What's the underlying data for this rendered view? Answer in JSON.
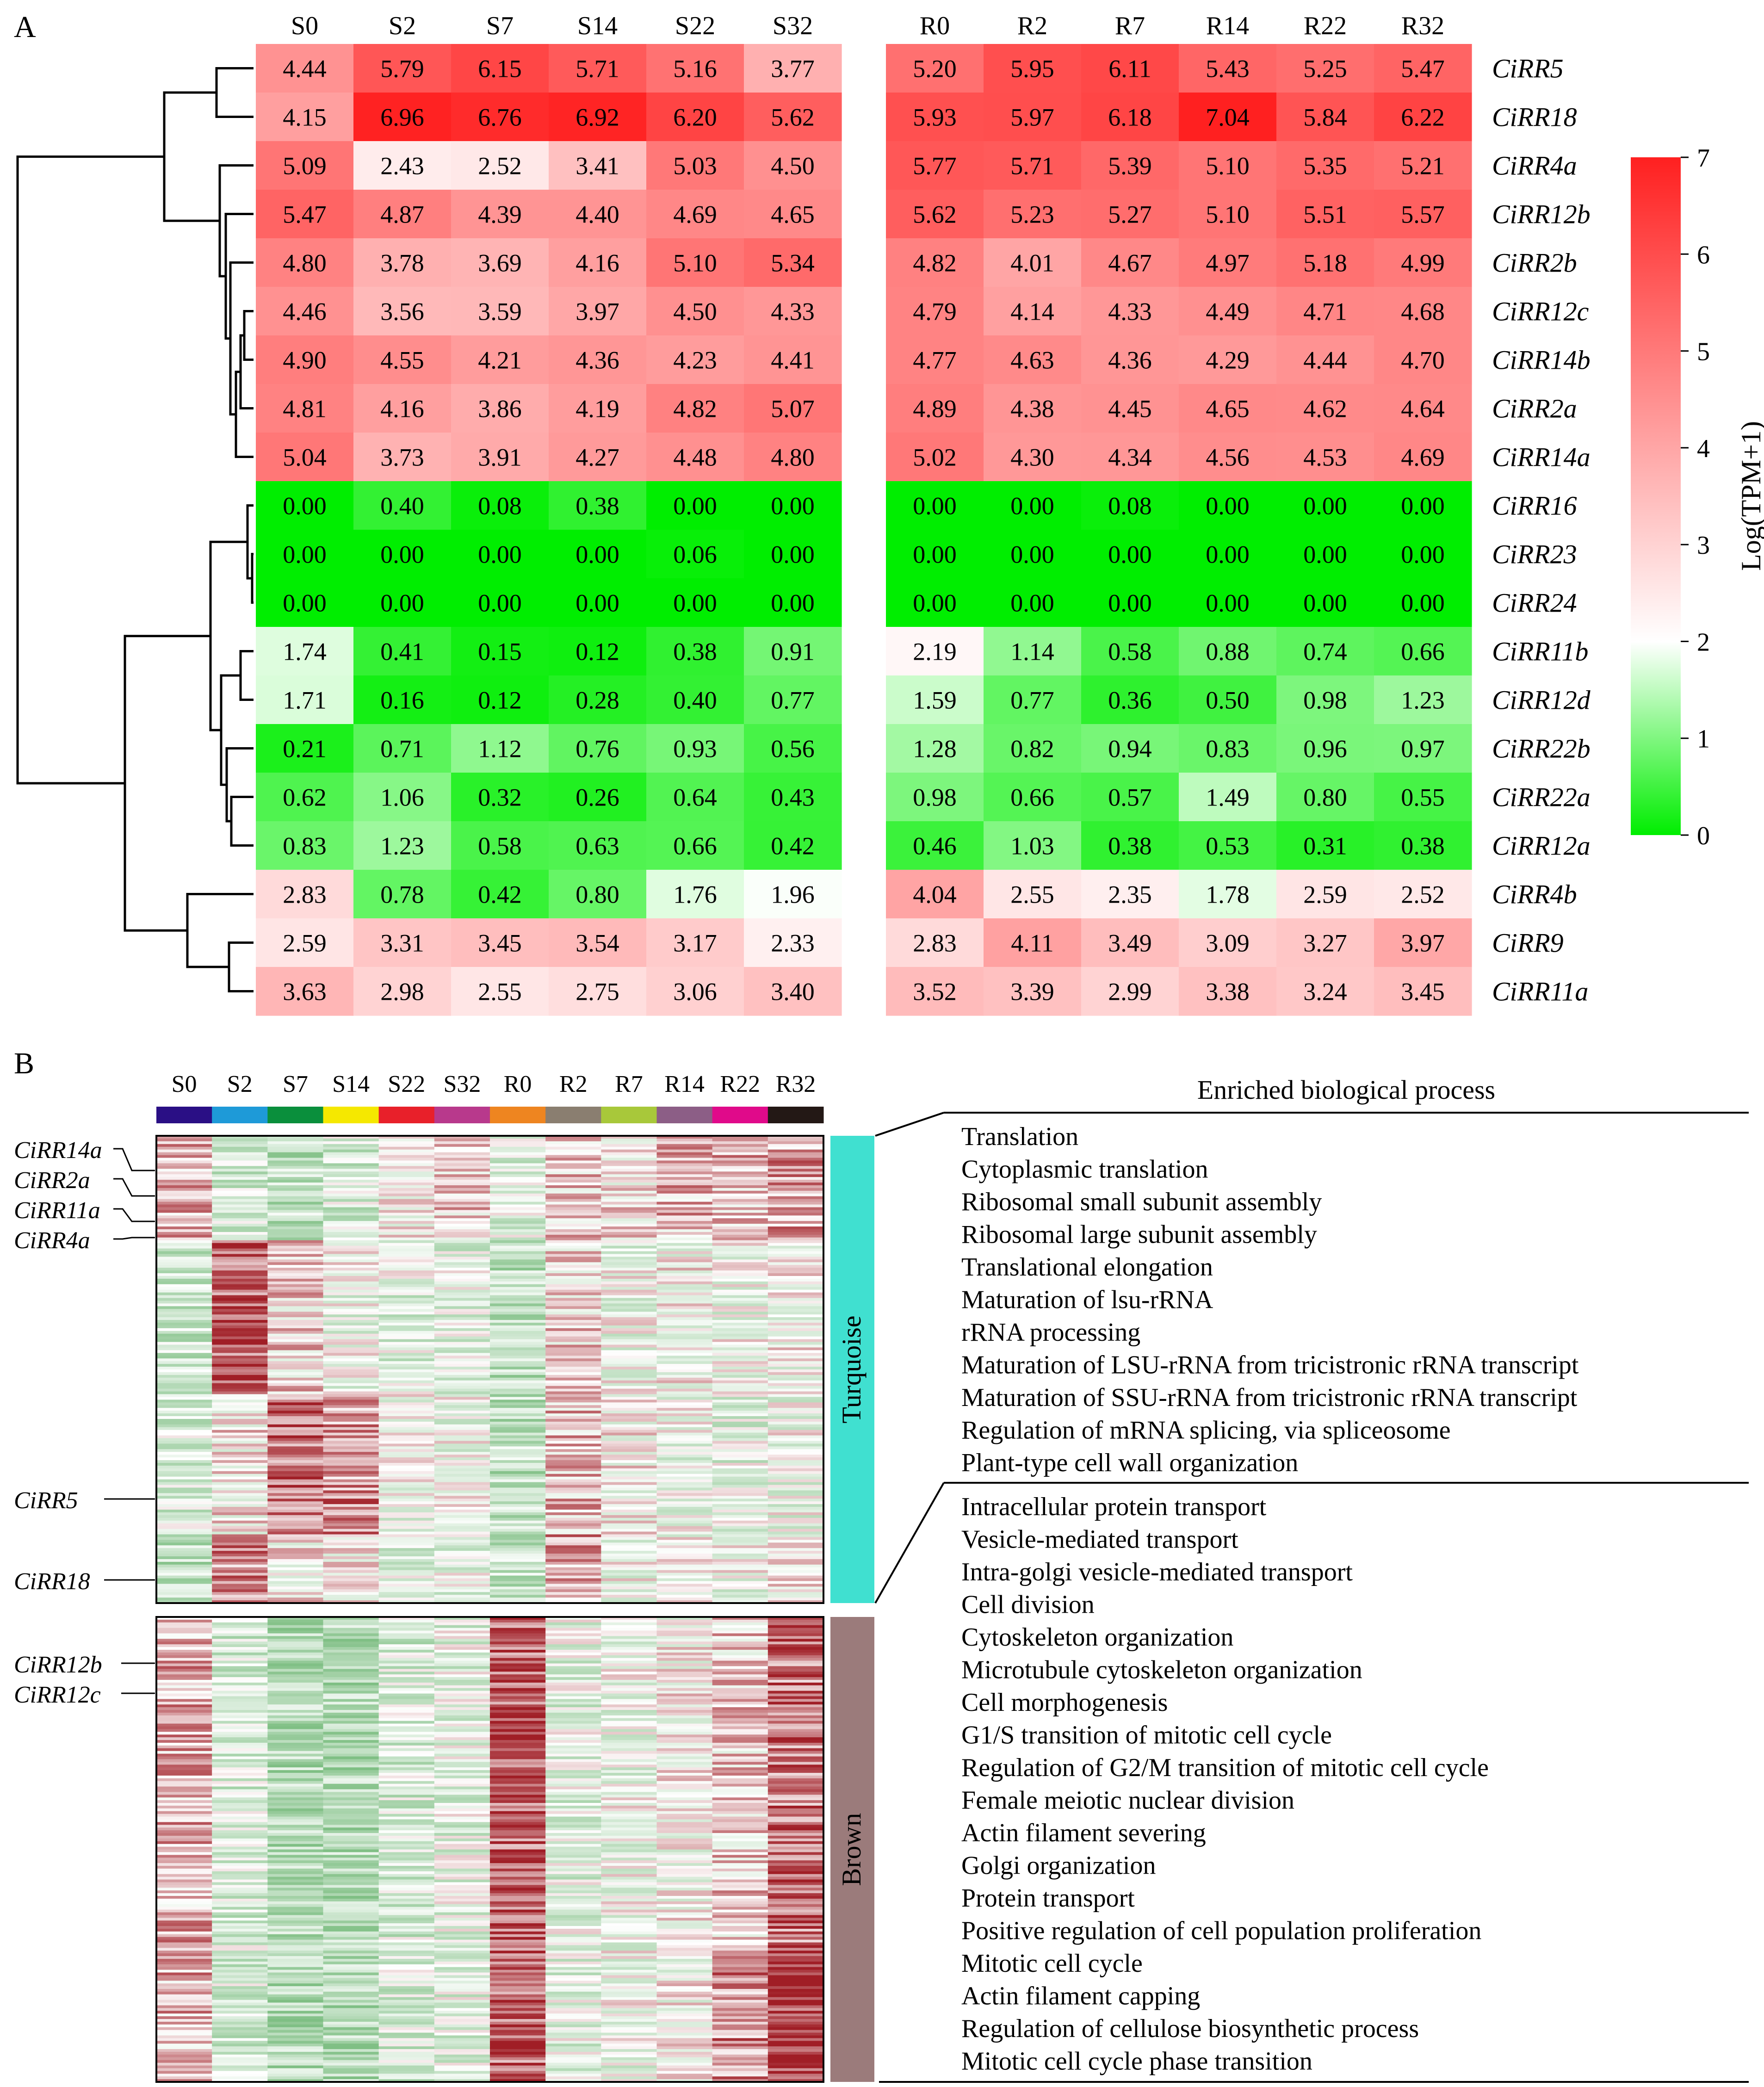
{
  "panels": {
    "a_label": "A",
    "b_label": "B"
  },
  "chart_data": [
    {
      "type": "heatmap",
      "title": "",
      "samples_s": [
        "S0",
        "S2",
        "S7",
        "S14",
        "S22",
        "S32"
      ],
      "samples_r": [
        "R0",
        "R2",
        "R7",
        "R14",
        "R22",
        "R32"
      ],
      "genes": [
        "CiRR5",
        "CiRR18",
        "CiRR4a",
        "CiRR12b",
        "CiRR2b",
        "CiRR12c",
        "CiRR14b",
        "CiRR2a",
        "CiRR14a",
        "CiRR16",
        "CiRR23",
        "CiRR24",
        "CiRR11b",
        "CiRR12d",
        "CiRR22b",
        "CiRR22a",
        "CiRR12a",
        "CiRR4b",
        "CiRR9",
        "CiRR11a"
      ],
      "values_s": [
        [
          "4.44",
          "5.79",
          "6.15",
          "5.71",
          "5.16",
          "3.77"
        ],
        [
          "4.15",
          "6.96",
          "6.76",
          "6.92",
          "6.20",
          "5.62"
        ],
        [
          "5.09",
          "2.43",
          "2.52",
          "3.41",
          "5.03",
          "4.50"
        ],
        [
          "5.47",
          "4.87",
          "4.39",
          "4.40",
          "4.69",
          "4.65"
        ],
        [
          "4.80",
          "3.78",
          "3.69",
          "4.16",
          "5.10",
          "5.34"
        ],
        [
          "4.46",
          "3.56",
          "3.59",
          "3.97",
          "4.50",
          "4.33"
        ],
        [
          "4.90",
          "4.55",
          "4.21",
          "4.36",
          "4.23",
          "4.41"
        ],
        [
          "4.81",
          "4.16",
          "3.86",
          "4.19",
          "4.82",
          "5.07"
        ],
        [
          "5.04",
          "3.73",
          "3.91",
          "4.27",
          "4.48",
          "4.80"
        ],
        [
          "0.00",
          "0.40",
          "0.08",
          "0.38",
          "0.00",
          "0.00"
        ],
        [
          "0.00",
          "0.00",
          "0.00",
          "0.00",
          "0.06",
          "0.00"
        ],
        [
          "0.00",
          "0.00",
          "0.00",
          "0.00",
          "0.00",
          "0.00"
        ],
        [
          "1.74",
          "0.41",
          "0.15",
          "0.12",
          "0.38",
          "0.91"
        ],
        [
          "1.71",
          "0.16",
          "0.12",
          "0.28",
          "0.40",
          "0.77"
        ],
        [
          "0.21",
          "0.71",
          "1.12",
          "0.76",
          "0.93",
          "0.56"
        ],
        [
          "0.62",
          "1.06",
          "0.32",
          "0.26",
          "0.64",
          "0.43"
        ],
        [
          "0.83",
          "1.23",
          "0.58",
          "0.63",
          "0.66",
          "0.42"
        ],
        [
          "2.83",
          "0.78",
          "0.42",
          "0.80",
          "1.76",
          "1.96"
        ],
        [
          "2.59",
          "3.31",
          "3.45",
          "3.54",
          "3.17",
          "2.33"
        ],
        [
          "3.63",
          "2.98",
          "2.55",
          "2.75",
          "3.06",
          "3.40"
        ]
      ],
      "values_r": [
        [
          "5.20",
          "5.95",
          "6.11",
          "5.43",
          "5.25",
          "5.47"
        ],
        [
          "5.93",
          "5.97",
          "6.18",
          "7.04",
          "5.84",
          "6.22"
        ],
        [
          "5.77",
          "5.71",
          "5.39",
          "5.10",
          "5.35",
          "5.21"
        ],
        [
          "5.62",
          "5.23",
          "5.27",
          "5.10",
          "5.51",
          "5.57"
        ],
        [
          "4.82",
          "4.01",
          "4.67",
          "4.97",
          "5.18",
          "4.99"
        ],
        [
          "4.79",
          "4.14",
          "4.33",
          "4.49",
          "4.71",
          "4.68"
        ],
        [
          "4.77",
          "4.63",
          "4.36",
          "4.29",
          "4.44",
          "4.70"
        ],
        [
          "4.89",
          "4.38",
          "4.45",
          "4.65",
          "4.62",
          "4.64"
        ],
        [
          "5.02",
          "4.30",
          "4.34",
          "4.56",
          "4.53",
          "4.69"
        ],
        [
          "0.00",
          "0.00",
          "0.08",
          "0.00",
          "0.00",
          "0.00"
        ],
        [
          "0.00",
          "0.00",
          "0.00",
          "0.00",
          "0.00",
          "0.00"
        ],
        [
          "0.00",
          "0.00",
          "0.00",
          "0.00",
          "0.00",
          "0.00"
        ],
        [
          "2.19",
          "1.14",
          "0.58",
          "0.88",
          "0.74",
          "0.66"
        ],
        [
          "1.59",
          "0.77",
          "0.36",
          "0.50",
          "0.98",
          "1.23"
        ],
        [
          "1.28",
          "0.82",
          "0.94",
          "0.83",
          "0.96",
          "0.97"
        ],
        [
          "0.98",
          "0.66",
          "0.57",
          "1.49",
          "0.80",
          "0.55"
        ],
        [
          "0.46",
          "1.03",
          "0.38",
          "0.53",
          "0.31",
          "0.38"
        ],
        [
          "4.04",
          "2.55",
          "2.35",
          "1.78",
          "2.59",
          "2.52"
        ],
        [
          "2.83",
          "4.11",
          "3.49",
          "3.09",
          "3.27",
          "3.97"
        ],
        [
          "3.52",
          "3.39",
          "2.99",
          "3.38",
          "3.24",
          "3.45"
        ]
      ],
      "colorbar": {
        "label": "Log(TPM+1)",
        "range": [
          0,
          7
        ],
        "midpoint": 2,
        "ticks": [
          "0",
          "1",
          "2",
          "3",
          "4",
          "5",
          "6",
          "7"
        ],
        "colors": {
          "low": "#00ee00",
          "mid": "#ffffff",
          "high": "#ff2020"
        }
      },
      "row_dendrogram": true
    },
    {
      "type": "heatmap",
      "title": "",
      "samples": [
        "S0",
        "S2",
        "S7",
        "S14",
        "S22",
        "S32",
        "R0",
        "R2",
        "R7",
        "R14",
        "R22",
        "R32"
      ],
      "sample_colors": [
        "#2a0f85",
        "#1e9ad8",
        "#0a8f3c",
        "#f5e800",
        "#e8202a",
        "#b8398c",
        "#ee8520",
        "#8a7e70",
        "#a8c83a",
        "#8c5e86",
        "#e00a8a",
        "#231815"
      ],
      "modules": [
        {
          "name": "Turquoise",
          "color": "#40e0d0"
        },
        {
          "name": "Brown",
          "color": "#9b7b7b"
        }
      ],
      "labelled_genes_turquoise": [
        "CiRR14a",
        "CiRR2a",
        "CiRR11a",
        "CiRR4a",
        "CiRR5",
        "CiRR18"
      ],
      "labelled_genes_brown": [
        "CiRR12b",
        "CiRR12c"
      ],
      "colors": {
        "low": "#7fbf84",
        "mid": "#ffffff",
        "high": "#a01e26"
      },
      "enrichment_title": "Enriched biological process",
      "turquoise_terms": [
        "Translation",
        "Cytoplasmic translation",
        "Ribosomal small subunit assembly",
        "Ribosomal large subunit assembly",
        "Translational elongation",
        "Maturation of lsu-rRNA",
        "rRNA processing",
        "Maturation of LSU-rRNA from tricistronic rRNA transcript",
        "Maturation of SSU-rRNA from tricistronic rRNA transcript",
        "Regulation of mRNA splicing, via spliceosome",
        "Plant-type cell wall organization"
      ],
      "brown_terms": [
        "Intracellular protein transport",
        "Vesicle-mediated transport",
        "Intra-golgi vesicle-mediated transport",
        "Cell division",
        "Cytoskeleton organization",
        "Microtubule cytoskeleton organization",
        "Cell morphogenesis",
        "G1/S transition of mitotic cell cycle",
        "Regulation of G2/M transition of mitotic cell cycle",
        "Female meiotic nuclear division",
        "Actin filament severing",
        "Golgi organization",
        "Protein transport",
        "Positive regulation of cell population proliferation",
        "Mitotic cell cycle",
        "Actin filament capping",
        "Regulation of cellulose biosynthetic process",
        "Mitotic cell cycle phase transition"
      ]
    }
  ]
}
